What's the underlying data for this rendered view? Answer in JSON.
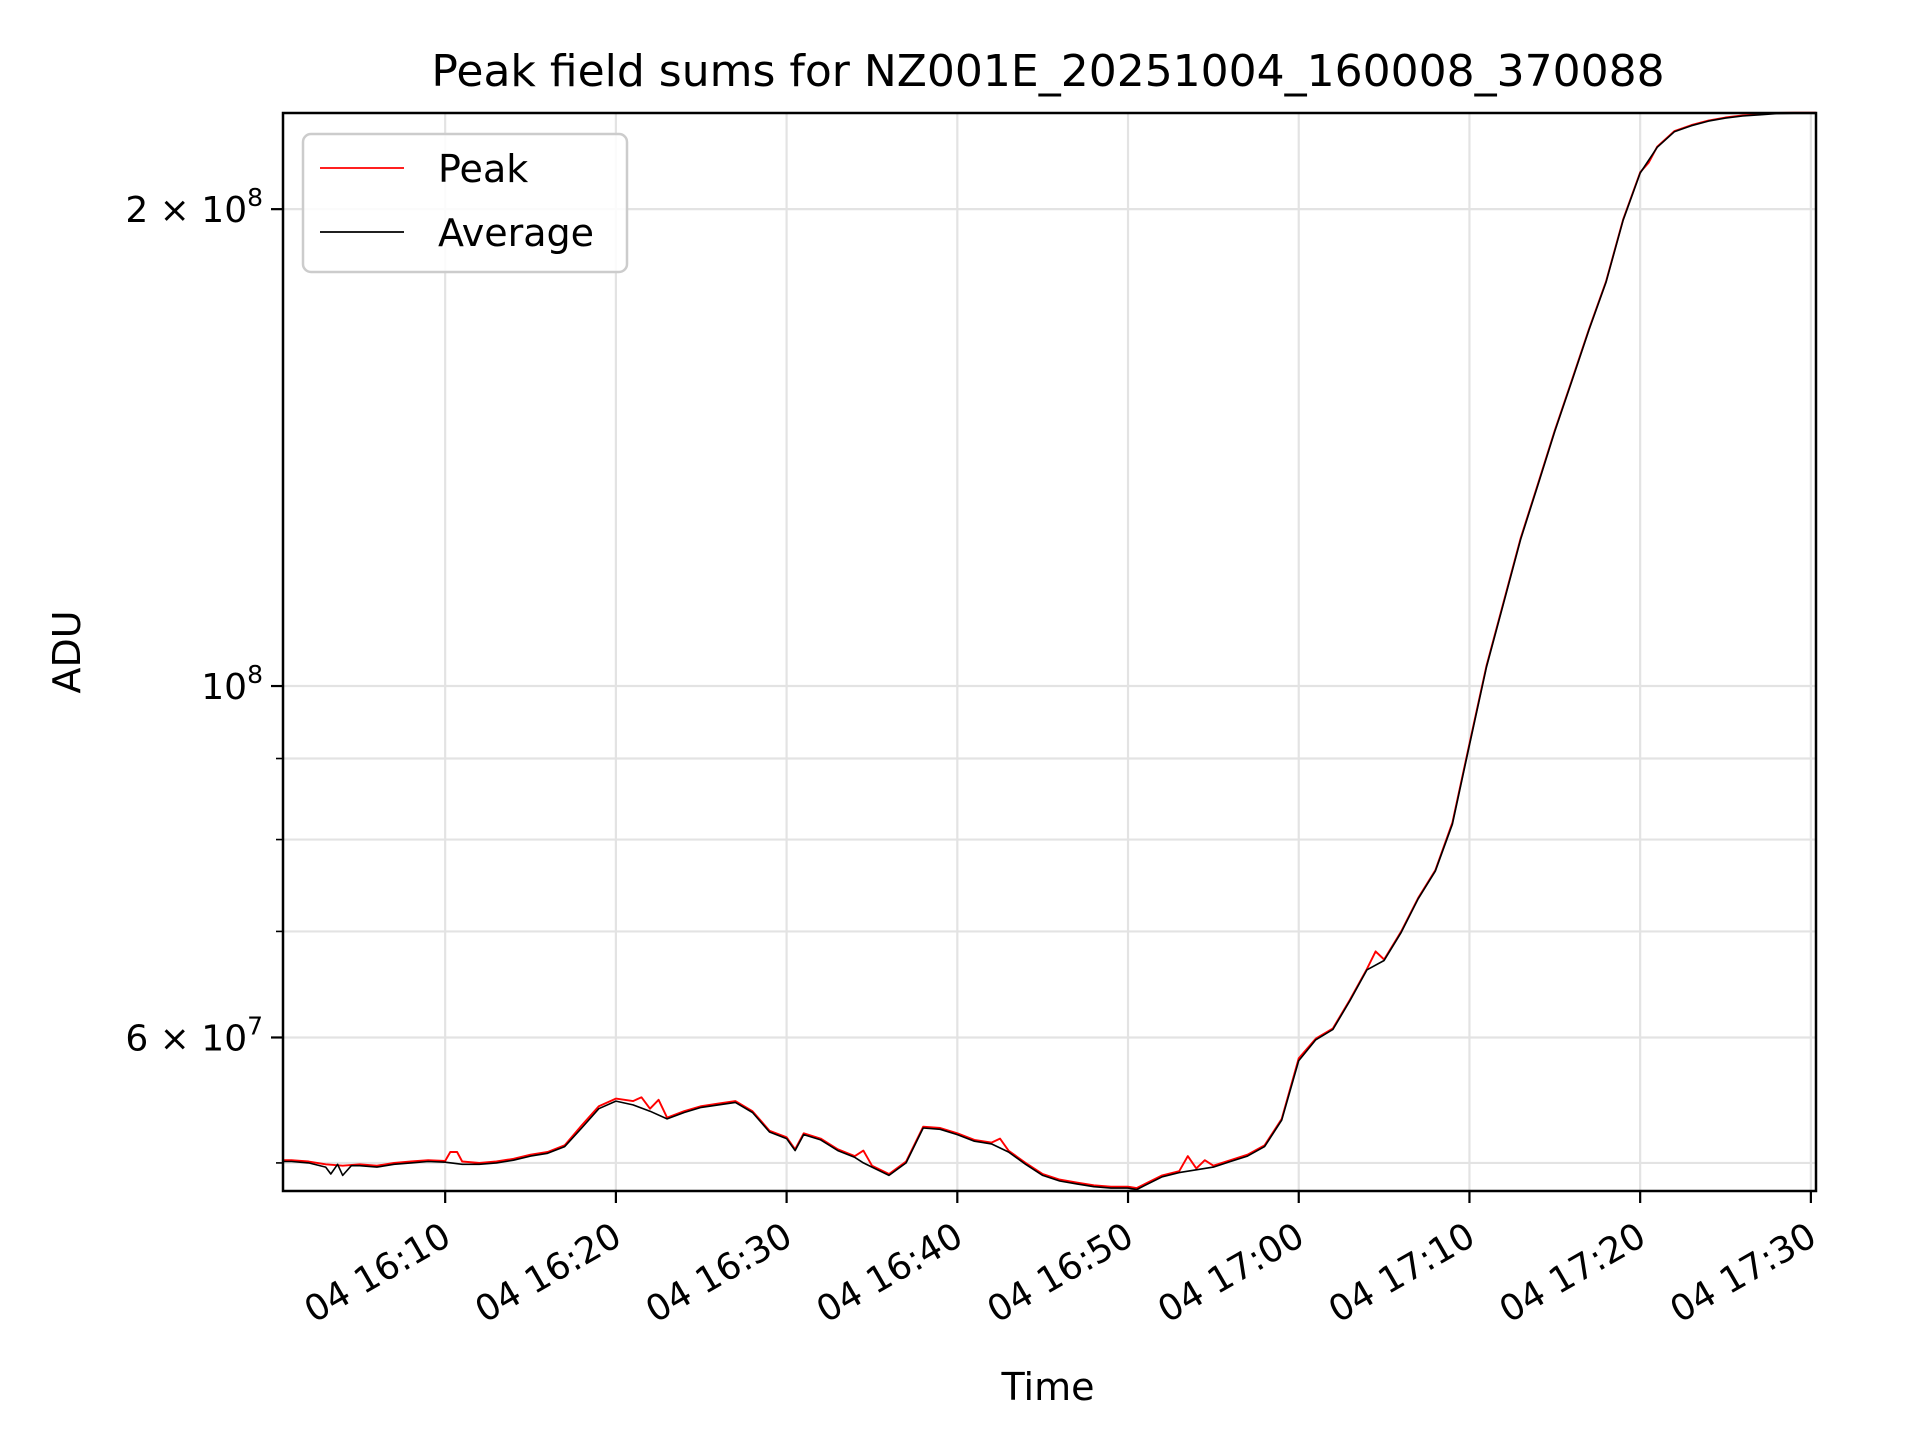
{
  "chart_data": {
    "type": "line",
    "title": "Peak field sums for NZ001E_20251004_160008_370088",
    "xlabel": "Time",
    "ylabel": "ADU",
    "yscale": "log",
    "ylim": [
      48000000,
      230000000
    ],
    "xlim_minutes": [
      0.5,
      90.3
    ],
    "grid": true,
    "legend_position": "top-left",
    "x_ticks": [
      {
        "minute": 10,
        "label": "04 16:10"
      },
      {
        "minute": 20,
        "label": "04 16:20"
      },
      {
        "minute": 30,
        "label": "04 16:30"
      },
      {
        "minute": 40,
        "label": "04 16:40"
      },
      {
        "minute": 50,
        "label": "04 16:50"
      },
      {
        "minute": 60,
        "label": "04 17:00"
      },
      {
        "minute": 70,
        "label": "04 17:10"
      },
      {
        "minute": 80,
        "label": "04 17:20"
      },
      {
        "minute": 90,
        "label": "04 17:30"
      }
    ],
    "y_ticks_major": [
      {
        "value": 60000000,
        "base": "6 × 10",
        "exp": "7"
      },
      {
        "value": 100000000,
        "base": "10",
        "exp": "8"
      },
      {
        "value": 200000000,
        "base": "2 × 10",
        "exp": "8"
      }
    ],
    "y_ticks_minor": [
      50000000,
      70000000,
      80000000,
      90000000
    ],
    "series": [
      {
        "name": "Peak",
        "color": "#ff0000",
        "points": [
          [
            0.5,
            50.2
          ],
          [
            1,
            50.2
          ],
          [
            2,
            50.1
          ],
          [
            3,
            49.9
          ],
          [
            4,
            49.8
          ],
          [
            5,
            49.9
          ],
          [
            6,
            49.8
          ],
          [
            7,
            50.0
          ],
          [
            8,
            50.1
          ],
          [
            9,
            50.2
          ],
          [
            10,
            50.15
          ],
          [
            10.3,
            50.8
          ],
          [
            10.7,
            50.8
          ],
          [
            11,
            50.1
          ],
          [
            12,
            50.0
          ],
          [
            13,
            50.1
          ],
          [
            14,
            50.3
          ],
          [
            15,
            50.6
          ],
          [
            16,
            50.8
          ],
          [
            17,
            51.3
          ],
          [
            18,
            52.8
          ],
          [
            19,
            54.3
          ],
          [
            20,
            54.9
          ],
          [
            21,
            54.7
          ],
          [
            21.5,
            55.0
          ],
          [
            22,
            54.1
          ],
          [
            22.5,
            54.8
          ],
          [
            23,
            53.4
          ],
          [
            24,
            53.9
          ],
          [
            25,
            54.3
          ],
          [
            26,
            54.5
          ],
          [
            27,
            54.7
          ],
          [
            28,
            53.9
          ],
          [
            29,
            52.4
          ],
          [
            30,
            51.9
          ],
          [
            30.5,
            51.0
          ],
          [
            31,
            52.2
          ],
          [
            32,
            51.8
          ],
          [
            33,
            51.0
          ],
          [
            34,
            50.5
          ],
          [
            34.5,
            50.9
          ],
          [
            35,
            49.8
          ],
          [
            36,
            49.2
          ],
          [
            37,
            50.1
          ],
          [
            38,
            52.7
          ],
          [
            39,
            52.6
          ],
          [
            40,
            52.2
          ],
          [
            41,
            51.7
          ],
          [
            42,
            51.5
          ],
          [
            42.5,
            51.8
          ],
          [
            43,
            50.9
          ],
          [
            44,
            50.0
          ],
          [
            45,
            49.2
          ],
          [
            46,
            48.8
          ],
          [
            47,
            48.6
          ],
          [
            48,
            48.4
          ],
          [
            49,
            48.3
          ],
          [
            50,
            48.3
          ],
          [
            50.5,
            48.2
          ],
          [
            51,
            48.5
          ],
          [
            52,
            49.1
          ],
          [
            53,
            49.4
          ],
          [
            53.5,
            50.5
          ],
          [
            54,
            49.6
          ],
          [
            54.5,
            50.2
          ],
          [
            55,
            49.8
          ],
          [
            56,
            50.2
          ],
          [
            57,
            50.6
          ],
          [
            58,
            51.3
          ],
          [
            59,
            53.3
          ],
          [
            60,
            58.2
          ],
          [
            61,
            59.9
          ],
          [
            62,
            60.8
          ],
          [
            63,
            63.4
          ],
          [
            64,
            66.3
          ],
          [
            64.5,
            68.0
          ],
          [
            65,
            67.2
          ],
          [
            66,
            70.0
          ],
          [
            67,
            73.5
          ],
          [
            68,
            76.5
          ],
          [
            69,
            82.0
          ],
          [
            70,
            92.0
          ],
          [
            71,
            103.0
          ],
          [
            72,
            113.0
          ],
          [
            73,
            124.0
          ],
          [
            74,
            134.0
          ],
          [
            75,
            145.0
          ],
          [
            76,
            156.0
          ],
          [
            77,
            168.0
          ],
          [
            78,
            180.0
          ],
          [
            79,
            197.0
          ],
          [
            80,
            211.0
          ],
          [
            80.5,
            214.0
          ],
          [
            81,
            219.0
          ],
          [
            82,
            224.0
          ],
          [
            83,
            226.0
          ],
          [
            84,
            227.5
          ],
          [
            85,
            228.5
          ],
          [
            86,
            229.2
          ],
          [
            87,
            229.6
          ],
          [
            88,
            230.0
          ],
          [
            89,
            230.1
          ],
          [
            90.3,
            230.1
          ]
        ]
      },
      {
        "name": "Average",
        "color": "#000000",
        "points": [
          [
            0.5,
            50.1
          ],
          [
            1,
            50.1
          ],
          [
            2,
            50.0
          ],
          [
            3,
            49.7
          ],
          [
            3.3,
            49.2
          ],
          [
            3.7,
            49.9
          ],
          [
            4,
            49.1
          ],
          [
            4.5,
            49.8
          ],
          [
            5,
            49.8
          ],
          [
            6,
            49.7
          ],
          [
            7,
            49.9
          ],
          [
            8,
            50.0
          ],
          [
            9,
            50.1
          ],
          [
            10,
            50.05
          ],
          [
            11,
            49.9
          ],
          [
            12,
            49.9
          ],
          [
            13,
            50.0
          ],
          [
            14,
            50.2
          ],
          [
            15,
            50.5
          ],
          [
            16,
            50.7
          ],
          [
            17,
            51.2
          ],
          [
            18,
            52.6
          ],
          [
            19,
            54.1
          ],
          [
            20,
            54.7
          ],
          [
            21,
            54.4
          ],
          [
            22,
            53.9
          ],
          [
            23,
            53.3
          ],
          [
            24,
            53.8
          ],
          [
            25,
            54.2
          ],
          [
            26,
            54.4
          ],
          [
            27,
            54.6
          ],
          [
            28,
            53.8
          ],
          [
            29,
            52.3
          ],
          [
            30,
            51.8
          ],
          [
            30.5,
            50.9
          ],
          [
            31,
            52.1
          ],
          [
            32,
            51.7
          ],
          [
            33,
            50.9
          ],
          [
            34,
            50.4
          ],
          [
            34.5,
            50.0
          ],
          [
            35,
            49.7
          ],
          [
            36,
            49.1
          ],
          [
            37,
            50.0
          ],
          [
            38,
            52.6
          ],
          [
            39,
            52.5
          ],
          [
            40,
            52.1
          ],
          [
            41,
            51.6
          ],
          [
            42,
            51.4
          ],
          [
            43,
            50.8
          ],
          [
            44,
            49.9
          ],
          [
            45,
            49.1
          ],
          [
            46,
            48.7
          ],
          [
            47,
            48.5
          ],
          [
            48,
            48.3
          ],
          [
            49,
            48.2
          ],
          [
            50,
            48.2
          ],
          [
            50.5,
            48.1
          ],
          [
            51,
            48.4
          ],
          [
            52,
            49.0
          ],
          [
            53,
            49.3
          ],
          [
            54,
            49.5
          ],
          [
            55,
            49.7
          ],
          [
            56,
            50.1
          ],
          [
            57,
            50.5
          ],
          [
            58,
            51.2
          ],
          [
            59,
            53.2
          ],
          [
            60,
            58.0
          ],
          [
            61,
            59.8
          ],
          [
            62,
            60.7
          ],
          [
            63,
            63.3
          ],
          [
            64,
            66.2
          ],
          [
            65,
            67.1
          ],
          [
            66,
            69.9
          ],
          [
            67,
            73.4
          ],
          [
            68,
            76.4
          ],
          [
            69,
            81.8
          ],
          [
            70,
            91.8
          ],
          [
            71,
            102.8
          ],
          [
            72,
            112.8
          ],
          [
            73,
            123.8
          ],
          [
            74,
            133.8
          ],
          [
            75,
            144.8
          ],
          [
            76,
            155.8
          ],
          [
            77,
            167.8
          ],
          [
            78,
            179.8
          ],
          [
            79,
            196.8
          ],
          [
            80,
            210.8
          ],
          [
            81,
            218.8
          ],
          [
            82,
            223.8
          ],
          [
            83,
            225.8
          ],
          [
            84,
            227.3
          ],
          [
            85,
            228.3
          ],
          [
            86,
            229.0
          ],
          [
            87,
            229.4
          ],
          [
            88,
            229.8
          ],
          [
            89,
            229.9
          ],
          [
            90.3,
            229.9
          ]
        ]
      }
    ]
  }
}
